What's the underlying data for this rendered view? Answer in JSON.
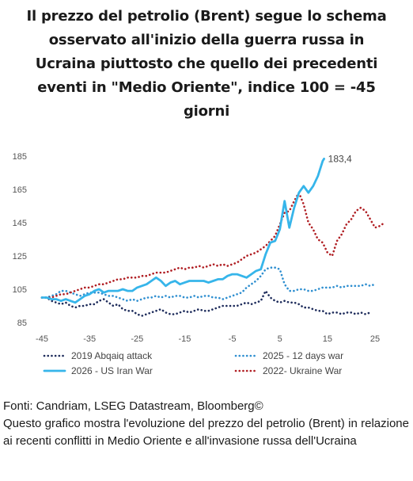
{
  "title_lines": [
    "Il prezzo del petrolio (Brent) segue lo schema",
    "osservato all'inizio della guerra russa in",
    "Ucraina piuttosto che quello dei precedenti",
    "eventi in \"Medio Oriente\", indice 100 = -45",
    "giorni"
  ],
  "chart_data": {
    "type": "line",
    "xlim": [
      -45,
      25
    ],
    "ylim": [
      85,
      185
    ],
    "x_ticks": [
      -45,
      -35,
      -25,
      -15,
      -5,
      5,
      15,
      25
    ],
    "y_ticks": [
      85,
      105,
      125,
      145,
      165,
      185
    ],
    "x_tick_labels": [
      "-45",
      "-35",
      "-25",
      "-15",
      "-5",
      "5",
      "15",
      "25"
    ],
    "y_tick_labels": [
      "85",
      "105",
      "125",
      "145",
      "165",
      "185"
    ],
    "grid": false,
    "legend_position": "bottom",
    "end_label": {
      "text": "183,4",
      "series": "2026 - US Iran War"
    },
    "series": [
      {
        "name": "2019 Abqaiq attack",
        "color": "#1f2d5c",
        "style": "dotted",
        "points": [
          [
            -45,
            100
          ],
          [
            -44,
            100
          ],
          [
            -43,
            98
          ],
          [
            -42,
            97
          ],
          [
            -41,
            96
          ],
          [
            -40,
            97
          ],
          [
            -39,
            95
          ],
          [
            -38,
            94
          ],
          [
            -37,
            95
          ],
          [
            -36,
            95
          ],
          [
            -35,
            96
          ],
          [
            -34,
            96
          ],
          [
            -33,
            98
          ],
          [
            -32,
            99
          ],
          [
            -31,
            97
          ],
          [
            -30,
            95
          ],
          [
            -29,
            96
          ],
          [
            -28,
            93
          ],
          [
            -27,
            92
          ],
          [
            -26,
            92
          ],
          [
            -25,
            90
          ],
          [
            -24,
            89
          ],
          [
            -23,
            90
          ],
          [
            -22,
            91
          ],
          [
            -21,
            92
          ],
          [
            -20,
            93
          ],
          [
            -19,
            91
          ],
          [
            -18,
            90
          ],
          [
            -17,
            90
          ],
          [
            -16,
            91
          ],
          [
            -15,
            92
          ],
          [
            -14,
            91
          ],
          [
            -13,
            92
          ],
          [
            -12,
            93
          ],
          [
            -11,
            92
          ],
          [
            -10,
            92
          ],
          [
            -9,
            93
          ],
          [
            -8,
            94
          ],
          [
            -7,
            95
          ],
          [
            -6,
            95
          ],
          [
            -5,
            95
          ],
          [
            -4,
            95
          ],
          [
            -3,
            96
          ],
          [
            -2,
            97
          ],
          [
            -1,
            96
          ],
          [
            0,
            97
          ],
          [
            1,
            98
          ],
          [
            2,
            104
          ],
          [
            3,
            100
          ],
          [
            4,
            98
          ],
          [
            5,
            97
          ],
          [
            6,
            98
          ],
          [
            7,
            97
          ],
          [
            8,
            97
          ],
          [
            9,
            96
          ],
          [
            10,
            94
          ],
          [
            11,
            94
          ],
          [
            12,
            93
          ],
          [
            13,
            92
          ],
          [
            14,
            92
          ],
          [
            15,
            90
          ],
          [
            16,
            91
          ],
          [
            17,
            91
          ],
          [
            18,
            90
          ],
          [
            19,
            91
          ],
          [
            20,
            91
          ],
          [
            21,
            90
          ],
          [
            22,
            91
          ],
          [
            23,
            90
          ],
          [
            24,
            91
          ]
        ]
      },
      {
        "name": "2025 - 12 days war",
        "color": "#2f8fd0",
        "style": "dotted",
        "points": [
          [
            -45,
            100
          ],
          [
            -44,
            100
          ],
          [
            -43,
            101
          ],
          [
            -42,
            102
          ],
          [
            -41,
            104
          ],
          [
            -40,
            104
          ],
          [
            -39,
            103
          ],
          [
            -38,
            102
          ],
          [
            -37,
            101
          ],
          [
            -36,
            102
          ],
          [
            -35,
            103
          ],
          [
            -34,
            103
          ],
          [
            -33,
            103
          ],
          [
            -32,
            102
          ],
          [
            -31,
            101
          ],
          [
            -30,
            101
          ],
          [
            -29,
            100
          ],
          [
            -28,
            99
          ],
          [
            -27,
            98
          ],
          [
            -26,
            99
          ],
          [
            -25,
            98
          ],
          [
            -24,
            99
          ],
          [
            -23,
            100
          ],
          [
            -22,
            100
          ],
          [
            -21,
            101
          ],
          [
            -20,
            100
          ],
          [
            -19,
            101
          ],
          [
            -18,
            100
          ],
          [
            -17,
            101
          ],
          [
            -16,
            101
          ],
          [
            -15,
            100
          ],
          [
            -14,
            100
          ],
          [
            -13,
            101
          ],
          [
            -12,
            100
          ],
          [
            -11,
            101
          ],
          [
            -10,
            101
          ],
          [
            -9,
            100
          ],
          [
            -8,
            100
          ],
          [
            -7,
            99
          ],
          [
            -6,
            100
          ],
          [
            -5,
            101
          ],
          [
            -4,
            102
          ],
          [
            -3,
            103
          ],
          [
            -2,
            106
          ],
          [
            -1,
            108
          ],
          [
            0,
            110
          ],
          [
            1,
            113
          ],
          [
            2,
            117
          ],
          [
            3,
            118
          ],
          [
            4,
            118
          ],
          [
            5,
            117
          ],
          [
            6,
            108
          ],
          [
            7,
            104
          ],
          [
            8,
            104
          ],
          [
            9,
            105
          ],
          [
            10,
            105
          ],
          [
            11,
            104
          ],
          [
            12,
            104
          ],
          [
            13,
            105
          ],
          [
            14,
            106
          ],
          [
            15,
            106
          ],
          [
            16,
            106
          ],
          [
            17,
            107
          ],
          [
            18,
            106
          ],
          [
            19,
            107
          ],
          [
            20,
            107
          ],
          [
            21,
            107
          ],
          [
            22,
            107
          ],
          [
            23,
            108
          ],
          [
            24,
            107
          ],
          [
            25,
            108
          ]
        ]
      },
      {
        "name": "2026 - US Iran War",
        "color": "#36b5ea",
        "style": "solid",
        "points": [
          [
            -45,
            100
          ],
          [
            -44,
            100
          ],
          [
            -43,
            99
          ],
          [
            -42,
            99
          ],
          [
            -41,
            98
          ],
          [
            -40,
            99
          ],
          [
            -39,
            98
          ],
          [
            -38,
            97
          ],
          [
            -37,
            99
          ],
          [
            -36,
            101
          ],
          [
            -35,
            102
          ],
          [
            -34,
            104
          ],
          [
            -33,
            105
          ],
          [
            -32,
            103
          ],
          [
            -31,
            104
          ],
          [
            -30,
            104
          ],
          [
            -29,
            104
          ],
          [
            -28,
            105
          ],
          [
            -27,
            104
          ],
          [
            -26,
            104
          ],
          [
            -25,
            106
          ],
          [
            -24,
            107
          ],
          [
            -23,
            108
          ],
          [
            -22,
            110
          ],
          [
            -21,
            112
          ],
          [
            -20,
            110
          ],
          [
            -19,
            107
          ],
          [
            -18,
            109
          ],
          [
            -17,
            110
          ],
          [
            -16,
            108
          ],
          [
            -15,
            109
          ],
          [
            -14,
            110
          ],
          [
            -13,
            110
          ],
          [
            -12,
            110
          ],
          [
            -11,
            110
          ],
          [
            -10,
            109
          ],
          [
            -9,
            110
          ],
          [
            -8,
            111
          ],
          [
            -7,
            111
          ],
          [
            -6,
            113
          ],
          [
            -5,
            114
          ],
          [
            -4,
            114
          ],
          [
            -3,
            113
          ],
          [
            -2,
            112
          ],
          [
            -1,
            114
          ],
          [
            0,
            116
          ],
          [
            1,
            117
          ],
          [
            2,
            126
          ],
          [
            3,
            133
          ],
          [
            4,
            134
          ],
          [
            5,
            141
          ],
          [
            6,
            158
          ],
          [
            7,
            142
          ],
          [
            8,
            154
          ],
          [
            9,
            163
          ],
          [
            10,
            167
          ],
          [
            11,
            163
          ],
          [
            12,
            167
          ],
          [
            13,
            173
          ],
          [
            14,
            182
          ],
          [
            14.3,
            183.4
          ]
        ]
      },
      {
        "name": "2022- Ukraine War",
        "color": "#b01e23",
        "style": "dotted",
        "points": [
          [
            -45,
            100
          ],
          [
            -44,
            100
          ],
          [
            -43,
            100
          ],
          [
            -42,
            101
          ],
          [
            -41,
            102
          ],
          [
            -40,
            102
          ],
          [
            -39,
            103
          ],
          [
            -38,
            104
          ],
          [
            -37,
            105
          ],
          [
            -36,
            106
          ],
          [
            -35,
            106
          ],
          [
            -34,
            107
          ],
          [
            -33,
            108
          ],
          [
            -32,
            108
          ],
          [
            -31,
            109
          ],
          [
            -30,
            110
          ],
          [
            -29,
            111
          ],
          [
            -28,
            111
          ],
          [
            -27,
            112
          ],
          [
            -26,
            112
          ],
          [
            -25,
            112
          ],
          [
            -24,
            113
          ],
          [
            -23,
            113
          ],
          [
            -22,
            114
          ],
          [
            -21,
            115
          ],
          [
            -20,
            115
          ],
          [
            -19,
            115
          ],
          [
            -18,
            116
          ],
          [
            -17,
            117
          ],
          [
            -16,
            118
          ],
          [
            -15,
            117
          ],
          [
            -14,
            118
          ],
          [
            -13,
            118
          ],
          [
            -12,
            119
          ],
          [
            -11,
            118
          ],
          [
            -10,
            119
          ],
          [
            -9,
            120
          ],
          [
            -8,
            119
          ],
          [
            -7,
            120
          ],
          [
            -6,
            119
          ],
          [
            -5,
            120
          ],
          [
            -4,
            121
          ],
          [
            -3,
            123
          ],
          [
            -2,
            125
          ],
          [
            -1,
            126
          ],
          [
            0,
            127
          ],
          [
            1,
            129
          ],
          [
            2,
            131
          ],
          [
            3,
            134
          ],
          [
            4,
            137
          ],
          [
            5,
            144
          ],
          [
            6,
            151
          ],
          [
            7,
            152
          ],
          [
            8,
            158
          ],
          [
            9,
            163
          ],
          [
            10,
            156
          ],
          [
            11,
            145
          ],
          [
            12,
            141
          ],
          [
            13,
            135
          ],
          [
            14,
            133
          ],
          [
            15,
            127
          ],
          [
            16,
            125
          ],
          [
            17,
            134
          ],
          [
            18,
            138
          ],
          [
            19,
            144
          ],
          [
            20,
            147
          ],
          [
            21,
            152
          ],
          [
            22,
            154
          ],
          [
            23,
            152
          ],
          [
            24,
            147
          ],
          [
            25,
            142
          ],
          [
            26,
            143
          ],
          [
            27,
            145
          ]
        ]
      }
    ]
  },
  "footer": {
    "sources": "Fonti: Candriam, LSEG Datastream, Bloomberg©",
    "description": "Questo grafico mostra l'evoluzione del prezzo del petrolio (Brent) in relazione ai recenti conflitti in Medio Oriente e all'invasione russa dell'Ucraina"
  }
}
